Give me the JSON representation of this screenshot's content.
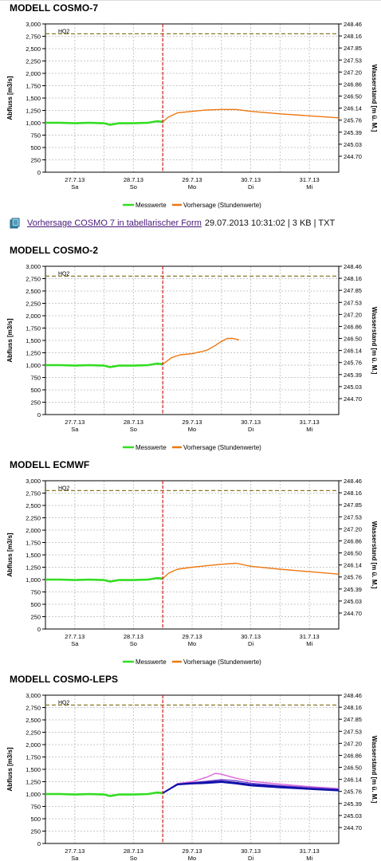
{
  "download": {
    "icon": "document-icon",
    "link_text": "Vorhersage COSMO 7 in tabellarischer Form",
    "meta": "29.07.2013 10:31:02 | 3 KB | TXT"
  },
  "colors": {
    "measured": "#33dd22",
    "forecast": "#ee7711",
    "threshold": "#8a7a2a",
    "now_line": "#d42020",
    "ensemble_main": "#1111aa",
    "ensemble_secondary": "#7744cc",
    "ensemble_high": "#dd66dd",
    "grid": "#c8c8c8"
  },
  "chart_data": [
    {
      "title": "MODELL COSMO-7",
      "type": "line",
      "ylabel": "Abfluss [m3/s]",
      "y2label": "Wasserstand [m ü. M.]",
      "yticks": [
        "3,000",
        "2,750",
        "2,500",
        "2,250",
        "2,000",
        "1,750",
        "1,500",
        "1,250",
        "1,000",
        "750",
        "500",
        "250",
        "0"
      ],
      "y2ticks": [
        "248.46",
        "248.16",
        "247.85",
        "247.53",
        "247.20",
        "246.86",
        "246.50",
        "246.14",
        "245.76",
        "245.39",
        "245.03",
        "244.70"
      ],
      "xticks": [
        {
          "date": "27.7.13",
          "day": "Sa"
        },
        {
          "date": "28.7.13",
          "day": "So"
        },
        {
          "date": "29.7.13",
          "day": "Mo"
        },
        {
          "date": "30.7.13",
          "day": "Di"
        },
        {
          "date": "31.7.13",
          "day": "Mi"
        }
      ],
      "xlim": [
        0,
        5
      ],
      "ylim": [
        0,
        3000
      ],
      "now_x": 2.0,
      "threshold": {
        "label": "HQ2",
        "value": 2800
      },
      "legend": [
        "Messwerte",
        "Vorhersage (Stundenwerte)"
      ],
      "series": [
        {
          "name": "Messwerte",
          "role": "measured",
          "x": [
            0,
            0.25,
            0.5,
            0.75,
            1.0,
            1.1,
            1.25,
            1.5,
            1.75,
            1.9,
            2.0
          ],
          "y": [
            1000,
            1000,
            990,
            1000,
            990,
            960,
            990,
            990,
            1000,
            1030,
            1020
          ]
        },
        {
          "name": "Vorhersage (Stundenwerte)",
          "role": "forecast",
          "x": [
            2.0,
            2.1,
            2.25,
            2.5,
            2.75,
            3.0,
            3.25,
            3.5,
            4.0,
            4.5,
            5.0
          ],
          "y": [
            1020,
            1120,
            1200,
            1230,
            1260,
            1270,
            1270,
            1230,
            1180,
            1140,
            1100
          ]
        }
      ]
    },
    {
      "title": "MODELL COSMO-2",
      "type": "line",
      "ylabel": "Abfluss [m3/s]",
      "y2label": "Wasserstand [m ü. M.]",
      "yticks": [
        "3,000",
        "2,750",
        "2,500",
        "2,250",
        "2,000",
        "1,750",
        "1,500",
        "1,250",
        "1,000",
        "750",
        "500",
        "250",
        "0"
      ],
      "y2ticks": [
        "248.46",
        "248.16",
        "247.85",
        "247.53",
        "247.20",
        "246.86",
        "246.50",
        "246.14",
        "245.76",
        "245.39",
        "245.03",
        "244.70"
      ],
      "xticks": [
        {
          "date": "27.7.13",
          "day": "Sa"
        },
        {
          "date": "28.7.13",
          "day": "So"
        },
        {
          "date": "29.7.13",
          "day": "Mo"
        },
        {
          "date": "30.7.13",
          "day": "Di"
        },
        {
          "date": "31.7.13",
          "day": "Mi"
        }
      ],
      "xlim": [
        0,
        5
      ],
      "ylim": [
        0,
        3000
      ],
      "now_x": 2.0,
      "threshold": {
        "label": "HQ2",
        "value": 2800
      },
      "legend": [
        "Messwerte",
        "Vorhersage (Stundenwerte)"
      ],
      "series": [
        {
          "name": "Messwerte",
          "role": "measured",
          "x": [
            0,
            0.25,
            0.5,
            0.75,
            1.0,
            1.1,
            1.25,
            1.5,
            1.75,
            1.9,
            2.0
          ],
          "y": [
            1000,
            1000,
            990,
            1000,
            990,
            960,
            990,
            990,
            1000,
            1030,
            1020
          ]
        },
        {
          "name": "Vorhersage (Stundenwerte)",
          "role": "forecast",
          "x": [
            2.0,
            2.15,
            2.3,
            2.5,
            2.75,
            2.9,
            3.0,
            3.1,
            3.2,
            3.3
          ],
          "y": [
            1020,
            1150,
            1210,
            1230,
            1300,
            1400,
            1480,
            1540,
            1540,
            1510
          ]
        }
      ]
    },
    {
      "title": "MODELL ECMWF",
      "type": "line",
      "ylabel": "Abfluss [m3/s]",
      "y2label": "Wasserstand [m ü. M.]",
      "yticks": [
        "3,000",
        "2,750",
        "2,500",
        "2,250",
        "2,000",
        "1,750",
        "1,500",
        "1,250",
        "1,000",
        "750",
        "500",
        "250",
        "0"
      ],
      "y2ticks": [
        "248.46",
        "248.16",
        "247.85",
        "247.53",
        "247.20",
        "246.86",
        "246.50",
        "246.14",
        "245.76",
        "245.39",
        "245.03",
        "244.70"
      ],
      "xticks": [
        {
          "date": "27.7.13",
          "day": "Sa"
        },
        {
          "date": "28.7.13",
          "day": "So"
        },
        {
          "date": "29.7.13",
          "day": "Mo"
        },
        {
          "date": "30.7.13",
          "day": "Di"
        },
        {
          "date": "31.7.13",
          "day": "Mi"
        }
      ],
      "xlim": [
        0,
        5
      ],
      "ylim": [
        0,
        3000
      ],
      "now_x": 2.0,
      "threshold": {
        "label": "HQ2",
        "value": 2800
      },
      "legend": [
        "Messwerte",
        "Vorhersage (Stundenwerte)"
      ],
      "series": [
        {
          "name": "Messwerte",
          "role": "measured",
          "x": [
            0,
            0.25,
            0.5,
            0.75,
            1.0,
            1.1,
            1.25,
            1.5,
            1.75,
            1.9,
            2.0
          ],
          "y": [
            1000,
            1000,
            990,
            1000,
            990,
            960,
            990,
            990,
            1000,
            1030,
            1020
          ]
        },
        {
          "name": "Vorhersage (Stundenwerte)",
          "role": "forecast",
          "x": [
            2.0,
            2.1,
            2.25,
            2.5,
            2.75,
            3.0,
            3.25,
            3.5,
            4.0,
            4.5,
            5.0
          ],
          "y": [
            1020,
            1130,
            1210,
            1250,
            1280,
            1310,
            1330,
            1270,
            1210,
            1160,
            1110
          ]
        }
      ]
    },
    {
      "title": "MODELL COSMO-LEPS",
      "type": "line",
      "ylabel": "Abfluss [m3/s]",
      "y2label": "Wasserstand [m ü. M.]",
      "yticks": [
        "3,000",
        "2,750",
        "2,500",
        "2,250",
        "2,000",
        "1,750",
        "1,500",
        "1,250",
        "1,000",
        "750",
        "500",
        "250",
        "0"
      ],
      "y2ticks": [
        "248.46",
        "248.16",
        "247.85",
        "247.53",
        "247.20",
        "246.86",
        "246.50",
        "246.14",
        "245.76",
        "245.39",
        "245.03",
        "244.70"
      ],
      "xticks": [
        {
          "date": "27.7.13",
          "day": "Sa"
        },
        {
          "date": "28.7.13",
          "day": "So"
        },
        {
          "date": "29.7.13",
          "day": "Mo"
        },
        {
          "date": "30.7.13",
          "day": "Di"
        },
        {
          "date": "31.7.13",
          "day": "Mi"
        }
      ],
      "xlim": [
        0,
        5
      ],
      "ylim": [
        0,
        3000
      ],
      "now_x": 2.0,
      "threshold": {
        "label": "HQ2",
        "value": 2800
      },
      "legend": [],
      "series": [
        {
          "role": "measured",
          "x": [
            0,
            0.25,
            0.5,
            0.75,
            1.0,
            1.1,
            1.25,
            1.5,
            1.75,
            1.9,
            2.0
          ],
          "y": [
            1000,
            1000,
            990,
            1000,
            990,
            960,
            990,
            990,
            1000,
            1030,
            1020
          ]
        },
        {
          "role": "ensemble_high",
          "x": [
            2.0,
            2.25,
            2.5,
            2.75,
            2.9,
            3.0,
            3.25,
            3.5,
            4.0,
            4.5,
            5.0
          ],
          "y": [
            1020,
            1210,
            1250,
            1340,
            1420,
            1400,
            1320,
            1260,
            1200,
            1150,
            1110
          ]
        },
        {
          "role": "ensemble_secondary",
          "x": [
            2.0,
            2.25,
            2.5,
            2.75,
            3.0,
            3.25,
            3.5,
            4.0,
            4.5,
            5.0
          ],
          "y": [
            1020,
            1200,
            1230,
            1260,
            1290,
            1270,
            1220,
            1170,
            1130,
            1100
          ]
        },
        {
          "role": "ensemble_main",
          "x": [
            2.0,
            2.25,
            2.5,
            2.75,
            3.0,
            3.25,
            3.5,
            4.0,
            4.5,
            5.0
          ],
          "y": [
            1020,
            1200,
            1220,
            1240,
            1260,
            1230,
            1190,
            1150,
            1110,
            1080
          ]
        },
        {
          "role": "ensemble_main",
          "x": [
            2.0,
            2.25,
            2.5,
            2.75,
            3.0,
            3.25,
            3.5,
            4.0,
            4.5,
            5.0
          ],
          "y": [
            1020,
            1190,
            1210,
            1220,
            1240,
            1210,
            1170,
            1130,
            1100,
            1070
          ]
        }
      ]
    }
  ]
}
